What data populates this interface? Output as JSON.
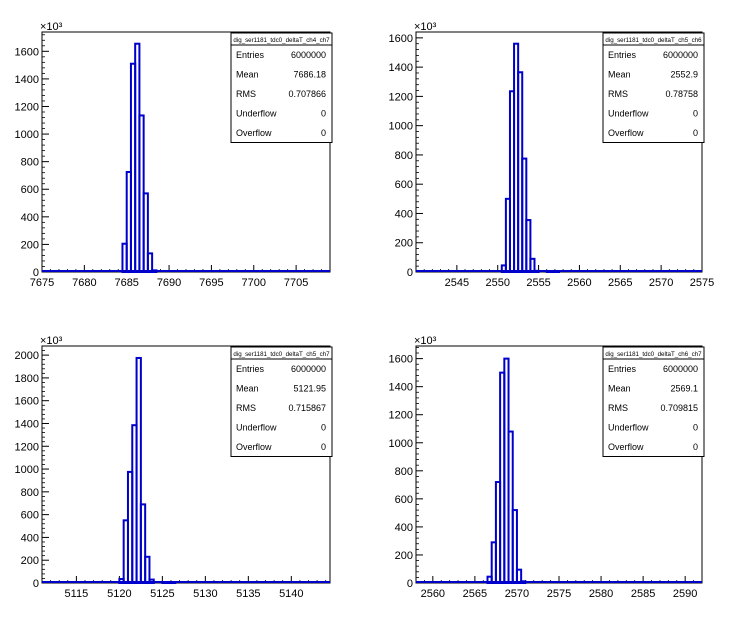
{
  "colors": {
    "histogram_line": "#0000cc",
    "frame": "#000000",
    "background": "#ffffff"
  },
  "chart_data": [
    {
      "type": "histogram",
      "title": "dig_ser1181_tdc0_deltaT_ch4_ch7",
      "y_exponent_label": "×10³",
      "xlim": [
        7675,
        7709
      ],
      "ylim": [
        0,
        1740
      ],
      "x_ticks": [
        7675,
        7680,
        7685,
        7690,
        7695,
        7700,
        7705
      ],
      "y_ticks": [
        0,
        200,
        400,
        600,
        800,
        1000,
        1200,
        1400,
        1600
      ],
      "bins": [
        {
          "x0": 7684.5,
          "x1": 7685.0,
          "y": 205
        },
        {
          "x0": 7685.0,
          "x1": 7685.5,
          "y": 725
        },
        {
          "x0": 7685.5,
          "x1": 7686.0,
          "y": 1510
        },
        {
          "x0": 7686.0,
          "x1": 7686.5,
          "y": 1655
        },
        {
          "x0": 7686.5,
          "x1": 7687.0,
          "y": 1135
        },
        {
          "x0": 7687.0,
          "x1": 7687.5,
          "y": 570
        },
        {
          "x0": 7687.5,
          "x1": 7688.0,
          "y": 135
        },
        {
          "x0": 7688.0,
          "x1": 7688.5,
          "y": 12
        }
      ],
      "stats": [
        {
          "label": "Entries",
          "value": "6000000"
        },
        {
          "label": "Mean",
          "value": "7686.18"
        },
        {
          "label": "RMS",
          "value": "0.707866"
        },
        {
          "label": "Underflow",
          "value": "0"
        },
        {
          "label": "Overflow",
          "value": "0"
        }
      ]
    },
    {
      "type": "histogram",
      "title": "dig_ser1181_tdc0_deltaT_ch5_ch6",
      "y_exponent_label": "×10³",
      "xlim": [
        2540,
        2575
      ],
      "ylim": [
        0,
        1640
      ],
      "x_ticks": [
        2545,
        2550,
        2555,
        2560,
        2565,
        2570,
        2575
      ],
      "y_ticks": [
        0,
        200,
        400,
        600,
        800,
        1000,
        1200,
        1400,
        1600
      ],
      "bins": [
        {
          "x0": 2550.5,
          "x1": 2551.0,
          "y": 45
        },
        {
          "x0": 2551.0,
          "x1": 2551.5,
          "y": 500
        },
        {
          "x0": 2551.5,
          "x1": 2552.0,
          "y": 1235
        },
        {
          "x0": 2552.0,
          "x1": 2552.5,
          "y": 1560
        },
        {
          "x0": 2552.5,
          "x1": 2553.0,
          "y": 1365
        },
        {
          "x0": 2553.0,
          "x1": 2553.5,
          "y": 775
        },
        {
          "x0": 2553.5,
          "x1": 2554.0,
          "y": 355
        },
        {
          "x0": 2554.0,
          "x1": 2554.5,
          "y": 90
        },
        {
          "x0": 2554.5,
          "x1": 2555.0,
          "y": 8
        },
        {
          "x0": 2556.0,
          "x1": 2557.5,
          "y": 5
        }
      ],
      "stats": [
        {
          "label": "Entries",
          "value": "6000000"
        },
        {
          "label": "Mean",
          "value": "2552.9"
        },
        {
          "label": "RMS",
          "value": "0.78758"
        },
        {
          "label": "Underflow",
          "value": "0"
        },
        {
          "label": "Overflow",
          "value": "0"
        }
      ]
    },
    {
      "type": "histogram",
      "title": "dig_ser1181_tdc0_deltaT_ch5_ch7",
      "y_exponent_label": "×10³",
      "xlim": [
        5111,
        5144.5
      ],
      "ylim": [
        0,
        2080
      ],
      "x_ticks": [
        5115,
        5120,
        5125,
        5130,
        5135,
        5140
      ],
      "y_ticks": [
        0,
        200,
        400,
        600,
        800,
        1000,
        1200,
        1400,
        1600,
        1800,
        2000
      ],
      "bins": [
        {
          "x0": 5120.0,
          "x1": 5120.5,
          "y": 35
        },
        {
          "x0": 5120.5,
          "x1": 5121.0,
          "y": 550
        },
        {
          "x0": 5121.0,
          "x1": 5121.5,
          "y": 975
        },
        {
          "x0": 5121.5,
          "x1": 5122.0,
          "y": 1385
        },
        {
          "x0": 5122.0,
          "x1": 5122.5,
          "y": 1975
        },
        {
          "x0": 5122.5,
          "x1": 5123.0,
          "y": 690
        },
        {
          "x0": 5123.0,
          "x1": 5123.5,
          "y": 230
        },
        {
          "x0": 5123.5,
          "x1": 5124.0,
          "y": 30
        },
        {
          "x0": 5125.0,
          "x1": 5126.5,
          "y": 6
        }
      ],
      "stats": [
        {
          "label": "Entries",
          "value": "6000000"
        },
        {
          "label": "Mean",
          "value": "5121.95"
        },
        {
          "label": "RMS",
          "value": "0.715867"
        },
        {
          "label": "Underflow",
          "value": "0"
        },
        {
          "label": "Overflow",
          "value": "0"
        }
      ]
    },
    {
      "type": "histogram",
      "title": "dig_ser1181_tdc0_deltaT_ch6_ch7",
      "y_exponent_label": "×10³",
      "xlim": [
        2558,
        2592
      ],
      "ylim": [
        0,
        1690
      ],
      "x_ticks": [
        2560,
        2565,
        2570,
        2575,
        2580,
        2585,
        2590
      ],
      "y_ticks": [
        0,
        200,
        400,
        600,
        800,
        1000,
        1200,
        1400,
        1600
      ],
      "bins": [
        {
          "x0": 2566.5,
          "x1": 2567.0,
          "y": 45
        },
        {
          "x0": 2567.0,
          "x1": 2567.5,
          "y": 290
        },
        {
          "x0": 2567.5,
          "x1": 2568.0,
          "y": 720
        },
        {
          "x0": 2568.0,
          "x1": 2568.5,
          "y": 1500
        },
        {
          "x0": 2568.5,
          "x1": 2569.0,
          "y": 1600
        },
        {
          "x0": 2569.0,
          "x1": 2569.5,
          "y": 1080
        },
        {
          "x0": 2569.5,
          "x1": 2570.0,
          "y": 520
        },
        {
          "x0": 2570.0,
          "x1": 2570.5,
          "y": 95
        },
        {
          "x0": 2570.5,
          "x1": 2571.0,
          "y": 12
        }
      ],
      "stats": [
        {
          "label": "Entries",
          "value": "6000000"
        },
        {
          "label": "Mean",
          "value": "2569.1"
        },
        {
          "label": "RMS",
          "value": "0.709815"
        },
        {
          "label": "Underflow",
          "value": "0"
        },
        {
          "label": "Overflow",
          "value": "0"
        }
      ]
    }
  ]
}
